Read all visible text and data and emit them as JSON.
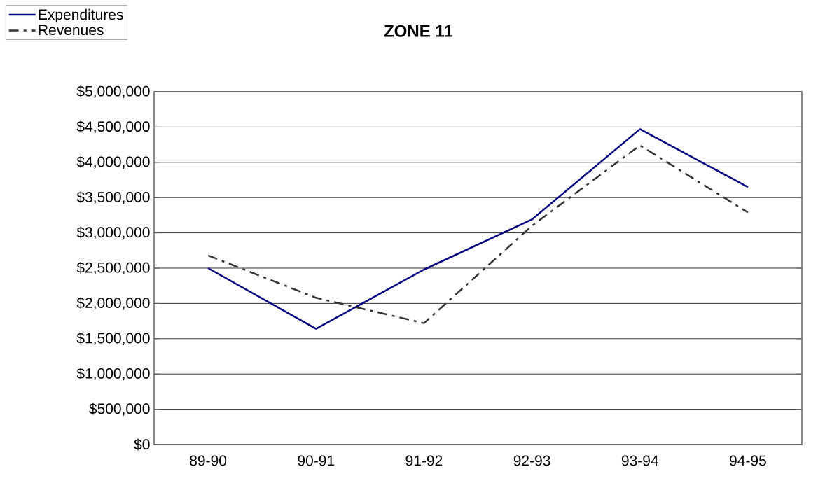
{
  "chart_data": {
    "type": "line",
    "title": "ZONE 11",
    "categories": [
      "89-90",
      "90-91",
      "91-92",
      "92-93",
      "93-94",
      "94-95"
    ],
    "series": [
      {
        "name": "Expenditures",
        "color": "#000080",
        "line_style": "solid",
        "values": [
          2500000,
          1640000,
          2480000,
          3190000,
          4470000,
          3650000
        ]
      },
      {
        "name": "Revenues",
        "color": "#333333",
        "line_style": "dashed",
        "values": [
          2680000,
          2080000,
          1720000,
          3100000,
          4240000,
          3290000
        ]
      }
    ],
    "ylim": [
      0,
      5000000
    ],
    "yticks": [
      {
        "value": 0,
        "label": "$0"
      },
      {
        "value": 500000,
        "label": "$500,000"
      },
      {
        "value": 1000000,
        "label": "$1,000,000"
      },
      {
        "value": 1500000,
        "label": "$1,500,000"
      },
      {
        "value": 2000000,
        "label": "$2,000,000"
      },
      {
        "value": 2500000,
        "label": "$2,500,000"
      },
      {
        "value": 3000000,
        "label": "$3,000,000"
      },
      {
        "value": 3500000,
        "label": "$3,500,000"
      },
      {
        "value": 4000000,
        "label": "$4,000,000"
      },
      {
        "value": 4500000,
        "label": "$4,500,000"
      },
      {
        "value": 5000000,
        "label": "$5,000,000"
      }
    ],
    "grid": "y",
    "legend": "top left",
    "marker": "none"
  }
}
